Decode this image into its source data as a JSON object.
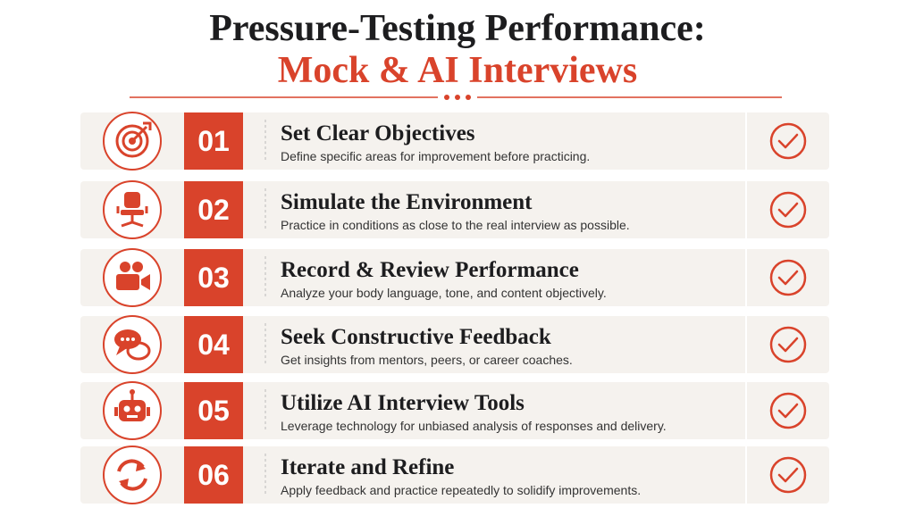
{
  "header": {
    "title_line1": "Pressure-Testing Performance:",
    "title_line2": "Mock & AI Interviews"
  },
  "steps": [
    {
      "number": "01",
      "title": "Set Clear Objectives",
      "description": "Define specific areas for improvement before practicing."
    },
    {
      "number": "02",
      "title": "Simulate the Environment",
      "description": "Practice in conditions as close to the real interview as possible."
    },
    {
      "number": "03",
      "title": "Record & Review Performance",
      "description": "Analyze your body language, tone, and content objectively."
    },
    {
      "number": "04",
      "title": "Seek Constructive Feedback",
      "description": "Get insights from mentors, peers, or career coaches."
    },
    {
      "number": "05",
      "title": "Utilize AI Interview Tools",
      "description": "Leverage technology for unbiased analysis of responses and delivery."
    },
    {
      "number": "06",
      "title": "Iterate and Refine",
      "description": "Apply feedback and practice repeatedly to solidify improvements."
    }
  ]
}
